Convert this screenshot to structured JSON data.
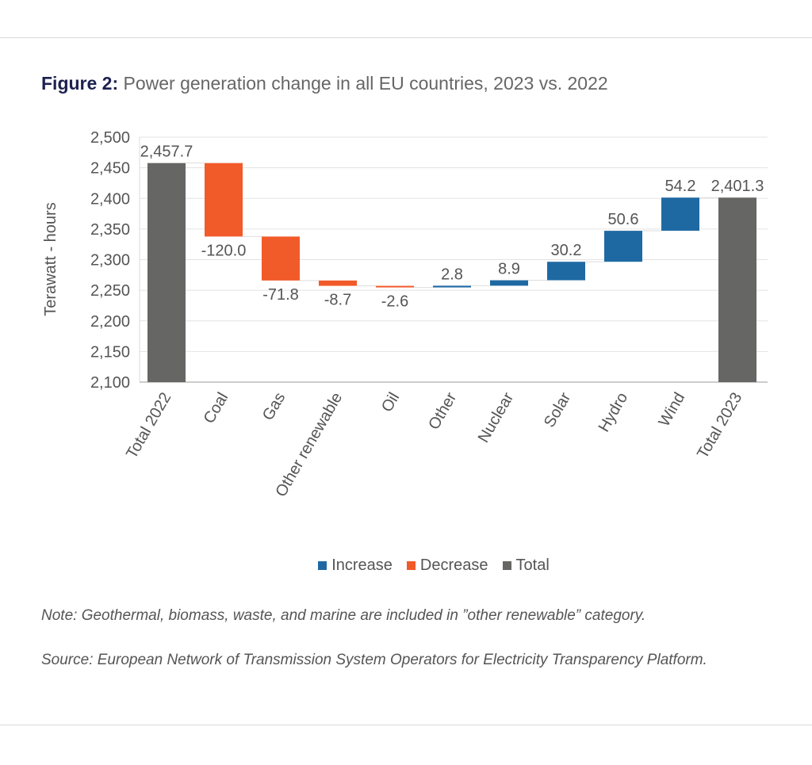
{
  "figure_label": "Figure 2:",
  "title": "Power generation change in all EU countries, 2023 vs. 2022",
  "note": "Note: Geothermal, biomass, waste, and marine are included in ”other renewable” category.",
  "source": "Source: European Network of Transmission System Operators for Electricity Transparency Platform.",
  "colors": {
    "increase": "#1f69a3",
    "decrease": "#f15a29",
    "total": "#666764",
    "title_accent": "#1c2150"
  },
  "chart_data": {
    "type": "waterfall",
    "title": "Power generation change in all EU countries, 2023 vs. 2022",
    "ylabel": "Terawatt - hours",
    "xlabel": "",
    "ylim": [
      2100,
      2500
    ],
    "yticks": [
      2100,
      2150,
      2200,
      2250,
      2300,
      2350,
      2400,
      2450,
      2500
    ],
    "ytick_labels": [
      "2,100",
      "2,150",
      "2,200",
      "2,250",
      "2,300",
      "2,350",
      "2,400",
      "2,450",
      "2,500"
    ],
    "grid": true,
    "legend": {
      "position": "bottom",
      "entries": [
        "Increase",
        "Decrease",
        "Total"
      ]
    },
    "categories": [
      "Total 2022",
      "Coal",
      "Gas",
      "Other renewable",
      "Oil",
      "Other",
      "Nuclear",
      "Solar",
      "Hydro",
      "Wind",
      "Total 2023"
    ],
    "values": [
      2457.7,
      -120.0,
      -71.8,
      -8.7,
      -2.6,
      2.8,
      8.9,
      30.2,
      50.6,
      54.2,
      2401.3
    ],
    "kinds": [
      "total",
      "decrease",
      "decrease",
      "decrease",
      "decrease",
      "increase",
      "increase",
      "increase",
      "increase",
      "increase",
      "total"
    ],
    "labels": [
      "2,457.7",
      "-120.0",
      "-71.8",
      "-8.7",
      "-2.6",
      "2.8",
      "8.9",
      "30.2",
      "50.6",
      "54.2",
      "2,401.3"
    ]
  }
}
